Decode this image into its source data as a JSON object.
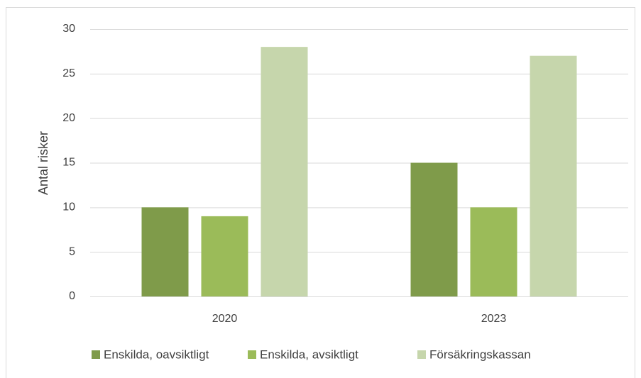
{
  "chart_data": {
    "type": "bar",
    "y_label": "Antal risker",
    "categories": [
      "2020",
      "2023"
    ],
    "series": [
      {
        "name": "Enskilda, oavsiktligt",
        "color": "#7f9b4a",
        "values": [
          10,
          15
        ]
      },
      {
        "name": "Enskilda, avsiktligt",
        "color": "#9bbb59",
        "values": [
          9,
          10
        ]
      },
      {
        "name": "Försäkringskassan",
        "color": "#c6d6ac",
        "values": [
          28,
          27
        ]
      }
    ],
    "ylim": [
      0,
      30
    ],
    "yticks": [
      0,
      5,
      10,
      15,
      20,
      25,
      30
    ],
    "grid": true,
    "legend": "bottom"
  }
}
